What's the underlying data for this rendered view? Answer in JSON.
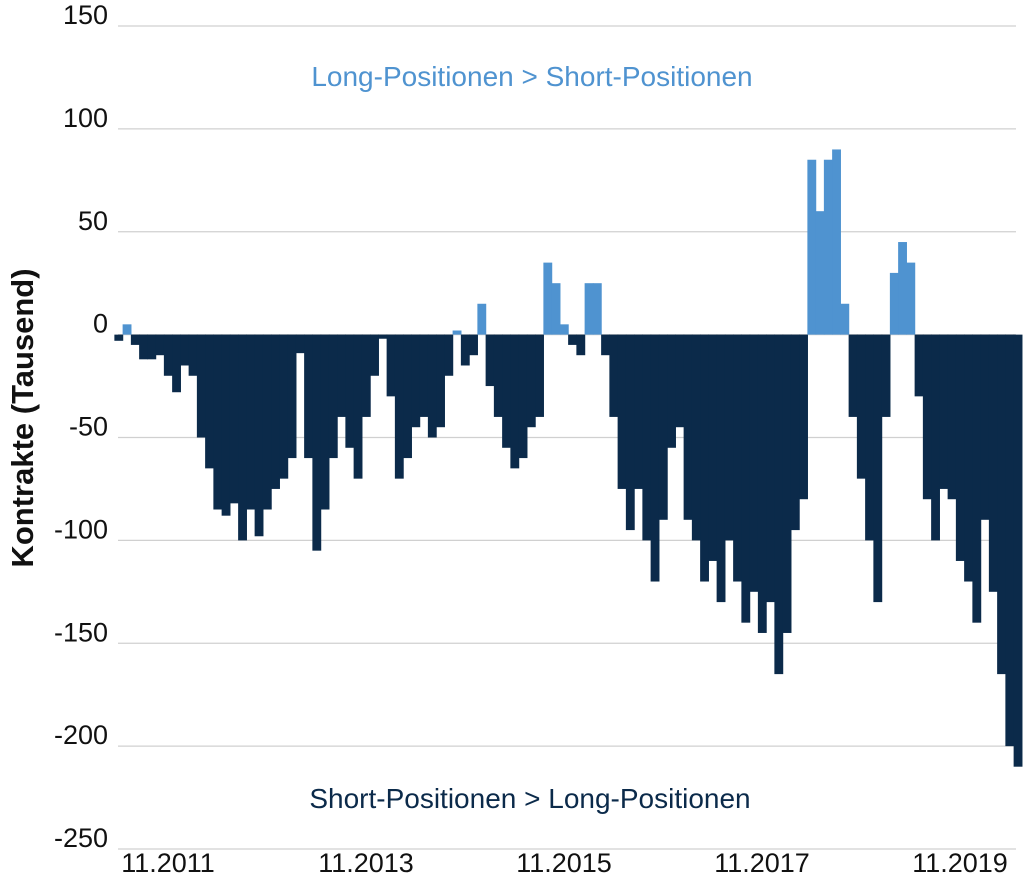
{
  "chart_data": {
    "type": "bar",
    "title": "",
    "xlabel": "",
    "ylabel": "Kontrakte (Tausend)",
    "ylim": [
      -250,
      150
    ],
    "yticks": [
      150,
      100,
      50,
      0,
      -50,
      -100,
      -150,
      -200,
      -250
    ],
    "xtick_labels": [
      "11.2011",
      "11.2013",
      "11.2015",
      "11.2017",
      "11.2019"
    ],
    "grid": "horizontal",
    "colors": {
      "positive": "#4f93d0",
      "negative": "#0b2a4a",
      "grid": "#d0d0d0"
    },
    "annotations": {
      "positive": "Long-Positionen > Short-Positionen",
      "negative": "Short-Positionen > Long-Positionen"
    },
    "x": [
      "05.2011",
      "06.2011",
      "07.2011",
      "08.2011",
      "09.2011",
      "10.2011",
      "11.2011",
      "12.2011",
      "01.2012",
      "02.2012",
      "03.2012",
      "04.2012",
      "05.2012",
      "06.2012",
      "07.2012",
      "08.2012",
      "09.2012",
      "10.2012",
      "11.2012",
      "12.2012",
      "01.2013",
      "02.2013",
      "03.2013",
      "04.2013",
      "05.2013",
      "06.2013",
      "07.2013",
      "08.2013",
      "09.2013",
      "10.2013",
      "11.2013",
      "12.2013",
      "01.2014",
      "02.2014",
      "03.2014",
      "04.2014",
      "05.2014",
      "06.2014",
      "07.2014",
      "08.2014",
      "09.2014",
      "10.2014",
      "11.2014",
      "12.2014",
      "01.2015",
      "02.2015",
      "03.2015",
      "04.2015",
      "05.2015",
      "06.2015",
      "07.2015",
      "08.2015",
      "09.2015",
      "10.2015",
      "11.2015",
      "12.2015",
      "01.2016",
      "02.2016",
      "03.2016",
      "04.2016",
      "05.2016",
      "06.2016",
      "07.2016",
      "08.2016",
      "09.2016",
      "10.2016",
      "11.2016",
      "12.2016",
      "01.2017",
      "02.2017",
      "03.2017",
      "04.2017",
      "05.2017",
      "06.2017",
      "07.2017",
      "08.2017",
      "09.2017",
      "10.2017",
      "11.2017",
      "12.2017",
      "01.2018",
      "02.2018",
      "03.2018",
      "04.2018",
      "05.2018",
      "06.2018",
      "07.2018",
      "08.2018",
      "09.2018",
      "10.2018",
      "11.2018",
      "12.2018",
      "01.2019",
      "02.2019",
      "03.2019",
      "04.2019",
      "05.2019",
      "06.2019",
      "07.2019",
      "08.2019",
      "09.2019",
      "10.2019",
      "11.2019",
      "12.2019",
      "01.2020",
      "02.2020",
      "03.2020",
      "04.2020",
      "05.2020",
      "06.2020"
    ],
    "values": [
      -3,
      5,
      -5,
      -12,
      -12,
      -10,
      -20,
      -28,
      -15,
      -20,
      -50,
      -65,
      -85,
      -88,
      -82,
      -100,
      -85,
      -98,
      -85,
      -75,
      -70,
      -60,
      -9,
      -60,
      -105,
      -85,
      -60,
      -40,
      -55,
      -70,
      -40,
      -20,
      -2,
      -30,
      -70,
      -60,
      -45,
      -40,
      -50,
      -45,
      -20,
      2,
      -15,
      -10,
      15,
      -25,
      -40,
      -55,
      -65,
      -60,
      -45,
      -40,
      35,
      25,
      5,
      -5,
      -10,
      25,
      25,
      -10,
      -40,
      -75,
      -95,
      -75,
      -100,
      -120,
      -90,
      -55,
      -45,
      -90,
      -100,
      -120,
      -110,
      -130,
      -100,
      -120,
      -140,
      -125,
      -145,
      -130,
      -165,
      -145,
      -95,
      -80,
      85,
      60,
      85,
      90,
      15,
      -40,
      -70,
      -100,
      -130,
      -40,
      30,
      45,
      35,
      -30,
      -80,
      -100,
      -75,
      -80,
      -110,
      -120,
      -140,
      -90,
      -125,
      -165,
      -200,
      -210
    ]
  }
}
